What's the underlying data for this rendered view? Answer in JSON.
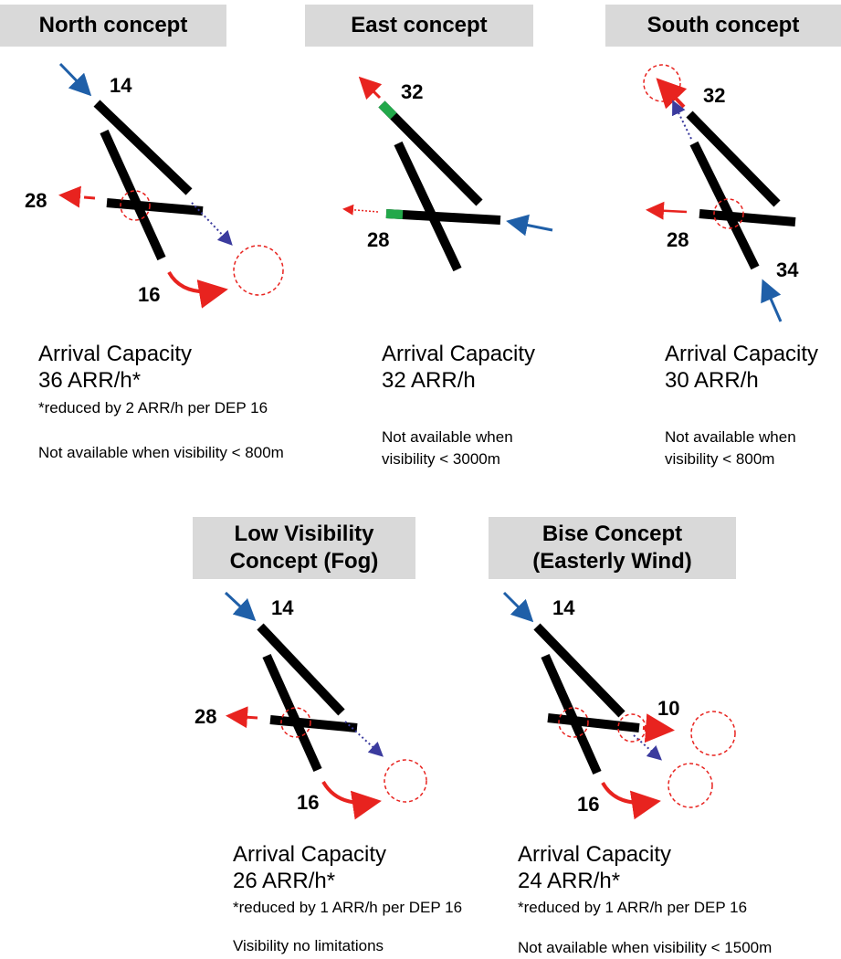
{
  "colors": {
    "runway": "#000000",
    "arrival_arrow": "#1f5fa8",
    "departure_arrow": "#e8231f",
    "dotted_link": "#3b3b9e",
    "threshold_mark": "#22a84a",
    "header_bg": "#d9d9d9"
  },
  "concepts": [
    {
      "title": "North concept",
      "runway_labels": [
        "14",
        "28",
        "16"
      ],
      "capacity_label": "Arrival Capacity",
      "capacity_value": "36 ARR/h*",
      "footnote": "*reduced by 2 ARR/h per DEP 16",
      "availability": "Not available when visibility < 800m"
    },
    {
      "title": "East concept",
      "runway_labels": [
        "32",
        "28"
      ],
      "capacity_label": "Arrival Capacity",
      "capacity_value": "32 ARR/h",
      "availability_line1": "Not available when",
      "availability_line2": "visibility < 3000m"
    },
    {
      "title": "South concept",
      "runway_labels": [
        "32",
        "28",
        "34"
      ],
      "capacity_label": "Arrival Capacity",
      "capacity_value": "30 ARR/h",
      "availability_line1": "Not available when",
      "availability_line2": "visibility < 800m"
    },
    {
      "title_line1": "Low Visibility",
      "title_line2": "Concept (Fog)",
      "runway_labels": [
        "14",
        "28",
        "16"
      ],
      "capacity_label": "Arrival Capacity",
      "capacity_value": "26 ARR/h*",
      "footnote": "*reduced by 1 ARR/h per DEP 16",
      "availability": "Visibility no limitations"
    },
    {
      "title_line1": "Bise Concept",
      "title_line2": "(Easterly Wind)",
      "runway_labels": [
        "14",
        "10",
        "16"
      ],
      "capacity_label": "Arrival Capacity",
      "capacity_value": "24 ARR/h*",
      "footnote": "*reduced by 1 ARR/h per DEP 16",
      "availability": "Not available when visibility < 1500m"
    }
  ]
}
